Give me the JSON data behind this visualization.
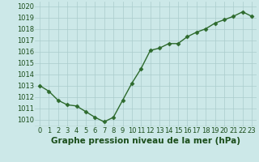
{
  "x": [
    0,
    1,
    2,
    3,
    4,
    5,
    6,
    7,
    8,
    9,
    10,
    11,
    12,
    13,
    14,
    15,
    16,
    17,
    18,
    19,
    20,
    21,
    22,
    23
  ],
  "y": [
    1013.0,
    1012.5,
    1011.7,
    1011.3,
    1011.2,
    1010.7,
    1010.2,
    1009.8,
    1010.2,
    1011.7,
    1013.2,
    1014.5,
    1016.1,
    1016.3,
    1016.7,
    1016.7,
    1017.3,
    1017.7,
    1018.0,
    1018.5,
    1018.8,
    1019.1,
    1019.5,
    1019.1
  ],
  "ylim": [
    1009.4,
    1020.4
  ],
  "yticks": [
    1010,
    1011,
    1012,
    1013,
    1014,
    1015,
    1016,
    1017,
    1018,
    1019,
    1020
  ],
  "xticks": [
    0,
    1,
    2,
    3,
    4,
    5,
    6,
    7,
    8,
    9,
    10,
    11,
    12,
    13,
    14,
    15,
    16,
    17,
    18,
    19,
    20,
    21,
    22,
    23
  ],
  "xlabel": "Graphe pression niveau de la mer (hPa)",
  "line_color": "#2d6a2d",
  "marker": "D",
  "marker_size": 2.5,
  "bg_color": "#cce8e8",
  "grid_color": "#aacccc",
  "tick_color": "#1a4d1a",
  "label_color": "#1a4d1a",
  "xlabel_fontsize": 7.5,
  "tick_fontsize": 6.0,
  "linewidth": 1.0
}
